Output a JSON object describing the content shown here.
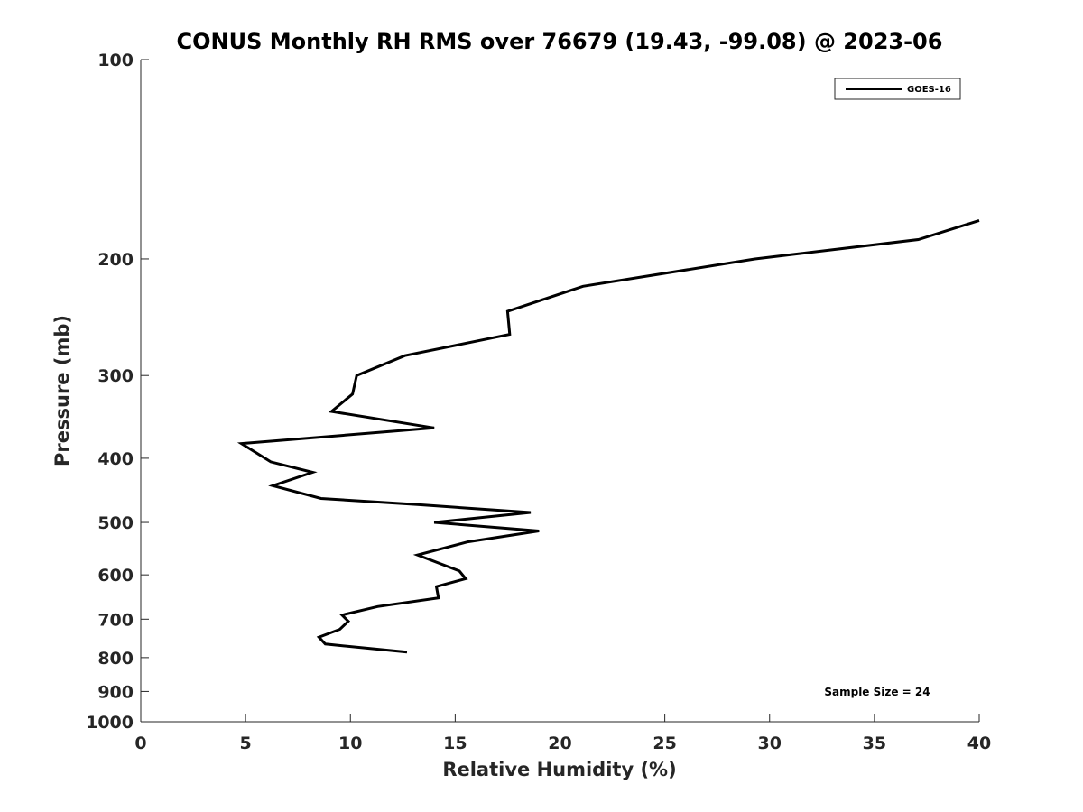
{
  "chart_data": {
    "type": "line",
    "title": "CONUS Monthly RH RMS over 76679 (19.43, -99.08) @ 2023-06",
    "xlabel": "Relative Humidity (%)",
    "ylabel": "Pressure (mb)",
    "xlim": [
      0,
      40
    ],
    "ylim": [
      100,
      1000
    ],
    "y_scale": "log",
    "y_reversed": true,
    "x_ticks": [
      0,
      5,
      10,
      15,
      20,
      25,
      30,
      35,
      40
    ],
    "x_tick_labels": [
      "0",
      "5",
      "10",
      "15",
      "20",
      "25",
      "30",
      "35",
      "40"
    ],
    "y_ticks": [
      100,
      200,
      300,
      400,
      500,
      600,
      700,
      800,
      900,
      1000
    ],
    "y_tick_labels": [
      "100",
      "200",
      "300",
      "400",
      "500",
      "600",
      "700",
      "800",
      "900",
      "1000"
    ],
    "grid": false,
    "legend_position": "top-right",
    "annotation": "Sample Size = 24",
    "series": [
      {
        "name": "GOES-16",
        "color": "#000000",
        "x": [
          40.0,
          37.1,
          29.3,
          21.1,
          17.5,
          17.6,
          12.6,
          10.3,
          10.1,
          9.1,
          14.0,
          4.8,
          6.2,
          8.2,
          6.3,
          8.6,
          13.2,
          18.6,
          14.0,
          19.0,
          15.6,
          13.2,
          15.2,
          15.5,
          14.1,
          14.2,
          11.3,
          9.6,
          9.9,
          9.5,
          8.5,
          8.8,
          12.7
        ],
        "y": [
          175,
          187,
          200,
          220,
          240,
          260,
          280,
          300,
          320,
          340,
          360,
          380,
          405,
          420,
          440,
          460,
          470,
          483,
          500,
          515,
          535,
          560,
          592,
          608,
          625,
          650,
          670,
          690,
          705,
          725,
          745,
          763,
          785
        ]
      }
    ]
  }
}
